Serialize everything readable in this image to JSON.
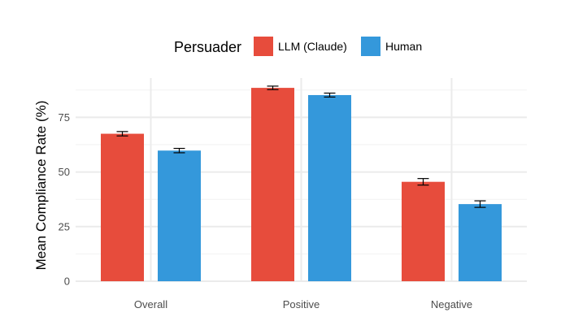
{
  "chart_data": {
    "type": "bar",
    "title": "",
    "xlabel": "",
    "ylabel": "Mean Compliance Rate (%)",
    "categories": [
      "Overall",
      "Positive",
      "Negative"
    ],
    "series": [
      {
        "name": "LLM (Claude)",
        "color": "#e74c3c",
        "values": [
          67.5,
          88.5,
          45.5
        ],
        "error": [
          1.0,
          0.8,
          1.5
        ]
      },
      {
        "name": "Human",
        "color": "#3498db",
        "values": [
          59.8,
          85.2,
          35.3
        ],
        "error": [
          1.0,
          0.9,
          1.5
        ]
      }
    ],
    "legend": {
      "title": "Persuader",
      "placement": "top"
    },
    "yticks": [
      0,
      25,
      50,
      75
    ],
    "ylim": [
      0,
      93
    ],
    "grid": true
  }
}
